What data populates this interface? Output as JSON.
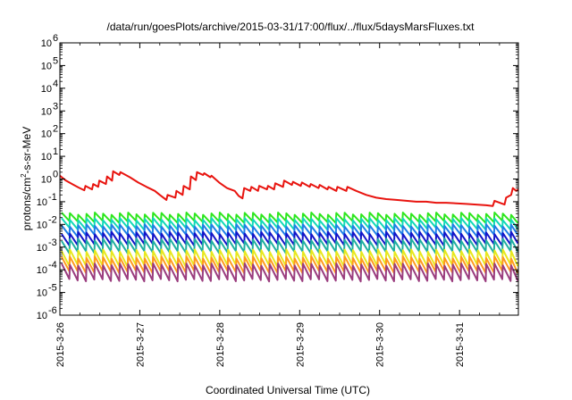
{
  "chart_data": {
    "type": "line",
    "title": "/data/run/goesPlots/archive/2015-03-31/17:00/flux/../flux/5daysMarsFluxes.txt",
    "xlabel": "Coordinated Universal Time (UTC)",
    "ylabel": {
      "prefix": "protons/cm",
      "superscript": "2",
      "suffix": "-s-sr-MeV"
    },
    "yscale": "log",
    "ylim": [
      1e-06,
      1000000.0
    ],
    "xlim": [
      "2015-03-26 00:00",
      "2015-03-31 17:40"
    ],
    "grid": false,
    "legend": "none",
    "y_ticks": [
      {
        "value": 1000000.0,
        "mantissa": "10",
        "exponent": "6"
      },
      {
        "value": 100000.0,
        "mantissa": "10",
        "exponent": "5"
      },
      {
        "value": 10000.0,
        "mantissa": "10",
        "exponent": "4"
      },
      {
        "value": 1000.0,
        "mantissa": "10",
        "exponent": "3"
      },
      {
        "value": 100.0,
        "mantissa": "10",
        "exponent": "2"
      },
      {
        "value": 10.0,
        "mantissa": "10",
        "exponent": "1"
      },
      {
        "value": 1.0,
        "mantissa": "10",
        "exponent": "0"
      },
      {
        "value": 0.1,
        "mantissa": "10",
        "exponent": "-1"
      },
      {
        "value": 0.01,
        "mantissa": "10",
        "exponent": "-2"
      },
      {
        "value": 0.001,
        "mantissa": "10",
        "exponent": "-3"
      },
      {
        "value": 0.0001,
        "mantissa": "10",
        "exponent": "-4"
      },
      {
        "value": 1e-05,
        "mantissa": "10",
        "exponent": "-5"
      },
      {
        "value": 1e-06,
        "mantissa": "10",
        "exponent": "-6"
      }
    ],
    "x_ticks": [
      {
        "value": "2015-03-26 00:00",
        "label": "2015-3-26"
      },
      {
        "value": "2015-03-27 00:00",
        "label": "2015-3-27"
      },
      {
        "value": "2015-03-28 00:00",
        "label": "2015-3-28"
      },
      {
        "value": "2015-03-29 00:00",
        "label": "2015-3-29"
      },
      {
        "value": "2015-03-30 00:00",
        "label": "2015-3-30"
      },
      {
        "value": "2015-03-31 00:00",
        "label": "2015-3-31"
      }
    ],
    "series": [
      {
        "color": "#e8140f",
        "points": [
          [
            "2015-03-26 00:00",
            1.4
          ],
          [
            "2015-03-26 01:50",
            0.85
          ],
          [
            "2015-03-26 04:10",
            0.55
          ],
          [
            "2015-03-26 05:40",
            0.42
          ],
          [
            "2015-03-26 07:20",
            0.32
          ],
          [
            "2015-03-26 07:40",
            0.5
          ],
          [
            "2015-03-26 09:40",
            0.35
          ],
          [
            "2015-03-26 10:00",
            0.6
          ],
          [
            "2015-03-26 11:30",
            0.45
          ],
          [
            "2015-03-26 11:50",
            0.85
          ],
          [
            "2015-03-26 13:50",
            0.6
          ],
          [
            "2015-03-26 14:10",
            1.3
          ],
          [
            "2015-03-26 15:40",
            0.85
          ],
          [
            "2015-03-26 16:00",
            2.2
          ],
          [
            "2015-03-26 17:50",
            1.5
          ],
          [
            "2015-03-26 18:10",
            2.0
          ],
          [
            "2015-03-26 21:00",
            1.2
          ],
          [
            "2015-03-26 23:30",
            0.7
          ],
          [
            "2015-03-27 02:00",
            0.45
          ],
          [
            "2015-03-27 04:30",
            0.3
          ],
          [
            "2015-03-27 06:00",
            0.2
          ],
          [
            "2015-03-27 08:00",
            0.12
          ],
          [
            "2015-03-27 08:20",
            0.2
          ],
          [
            "2015-03-27 10:40",
            0.15
          ],
          [
            "2015-03-27 11:00",
            0.3
          ],
          [
            "2015-03-27 12:50",
            0.2
          ],
          [
            "2015-03-27 13:10",
            0.5
          ],
          [
            "2015-03-27 15:00",
            0.35
          ],
          [
            "2015-03-27 15:20",
            1.3
          ],
          [
            "2015-03-27 16:50",
            0.9
          ],
          [
            "2015-03-27 17:10",
            2.0
          ],
          [
            "2015-03-27 19:00",
            1.5
          ],
          [
            "2015-03-27 19:20",
            1.8
          ],
          [
            "2015-03-27 21:10",
            1.2
          ],
          [
            "2015-03-27 21:30",
            1.4
          ],
          [
            "2015-03-27 23:50",
            0.7
          ],
          [
            "2015-03-28 02:10",
            0.4
          ],
          [
            "2015-03-28 04:30",
            0.3
          ],
          [
            "2015-03-28 05:40",
            0.18
          ],
          [
            "2015-03-28 06:50",
            0.14
          ],
          [
            "2015-03-28 07:20",
            0.4
          ],
          [
            "2015-03-28 09:10",
            0.3
          ],
          [
            "2015-03-28 09:30",
            0.45
          ],
          [
            "2015-03-28 11:30",
            0.3
          ],
          [
            "2015-03-28 11:50",
            0.5
          ],
          [
            "2015-03-28 14:10",
            0.35
          ],
          [
            "2015-03-28 14:30",
            0.5
          ],
          [
            "2015-03-28 16:20",
            0.35
          ],
          [
            "2015-03-28 16:40",
            0.65
          ],
          [
            "2015-03-28 19:00",
            0.45
          ],
          [
            "2015-03-28 19:20",
            0.85
          ],
          [
            "2015-03-28 21:40",
            0.55
          ],
          [
            "2015-03-28 22:00",
            0.75
          ],
          [
            "2015-03-29 00:20",
            0.5
          ],
          [
            "2015-03-29 00:40",
            0.7
          ],
          [
            "2015-03-29 03:00",
            0.45
          ],
          [
            "2015-03-29 03:20",
            0.6
          ],
          [
            "2015-03-29 05:40",
            0.4
          ],
          [
            "2015-03-29 06:00",
            0.55
          ],
          [
            "2015-03-29 08:20",
            0.35
          ],
          [
            "2015-03-29 08:40",
            0.45
          ],
          [
            "2015-03-29 11:00",
            0.3
          ],
          [
            "2015-03-29 11:20",
            0.45
          ],
          [
            "2015-03-29 14:00",
            0.3
          ],
          [
            "2015-03-29 14:20",
            0.45
          ],
          [
            "2015-03-29 17:00",
            0.3
          ],
          [
            "2015-03-29 20:00",
            0.2
          ],
          [
            "2015-03-29 23:00",
            0.15
          ],
          [
            "2015-03-30 02:00",
            0.13
          ],
          [
            "2015-03-30 05:00",
            0.12
          ],
          [
            "2015-03-30 08:00",
            0.11
          ],
          [
            "2015-03-30 11:00",
            0.1
          ],
          [
            "2015-03-30 14:00",
            0.1
          ],
          [
            "2015-03-30 17:00",
            0.09
          ],
          [
            "2015-03-30 20:00",
            0.09
          ],
          [
            "2015-03-30 23:00",
            0.085
          ],
          [
            "2015-03-31 02:00",
            0.08
          ],
          [
            "2015-03-31 05:00",
            0.075
          ],
          [
            "2015-03-31 08:00",
            0.07
          ],
          [
            "2015-03-31 10:00",
            0.065
          ],
          [
            "2015-03-31 10:30",
            0.11
          ],
          [
            "2015-03-31 13:30",
            0.075
          ],
          [
            "2015-03-31 14:00",
            0.15
          ],
          [
            "2015-03-31 15:30",
            0.2
          ],
          [
            "2015-03-31 16:00",
            0.4
          ],
          [
            "2015-03-31 17:00",
            0.3
          ],
          [
            "2015-03-31 17:40",
            0.35
          ]
        ]
      },
      {
        "color": "#2ee61e",
        "start": "2015-03-26 00:30",
        "end": "2015-03-31 17:40",
        "period_hours": 2.5,
        "peak": 0.03,
        "trough": 0.013
      },
      {
        "color": "#12d9b8",
        "start": "2015-03-26 00:30",
        "end": "2015-03-31 17:40",
        "period_hours": 2.5,
        "peak": 0.017,
        "trough": 0.0065
      },
      {
        "color": "#1f7fe6",
        "start": "2015-03-26 00:30",
        "end": "2015-03-31 17:40",
        "period_hours": 2.5,
        "peak": 0.009,
        "trough": 0.0032
      },
      {
        "color": "#1414c8",
        "start": "2015-03-26 00:30",
        "end": "2015-03-31 17:40",
        "period_hours": 2.5,
        "peak": 0.0042,
        "trough": 0.0013
      },
      {
        "color": "#20b0a0",
        "start": "2015-03-26 00:30",
        "end": "2015-03-31 17:40",
        "period_hours": 2.5,
        "peak": 0.0021,
        "trough": 0.0006
      },
      {
        "color": "#e8e81e",
        "start": "2015-03-26 00:30",
        "end": "2015-03-31 17:40",
        "period_hours": 2.5,
        "peak": 0.0007,
        "trough": 0.00015
      },
      {
        "color": "#ff9a1f",
        "start": "2015-03-26 00:30",
        "end": "2015-03-31 17:40",
        "period_hours": 2.5,
        "peak": 0.00035,
        "trough": 8e-05
      },
      {
        "color": "#9a3c7e",
        "start": "2015-03-26 00:30",
        "end": "2015-03-31 17:40",
        "period_hours": 2.5,
        "peak": 0.00017,
        "trough": 3.5e-05
      }
    ]
  }
}
